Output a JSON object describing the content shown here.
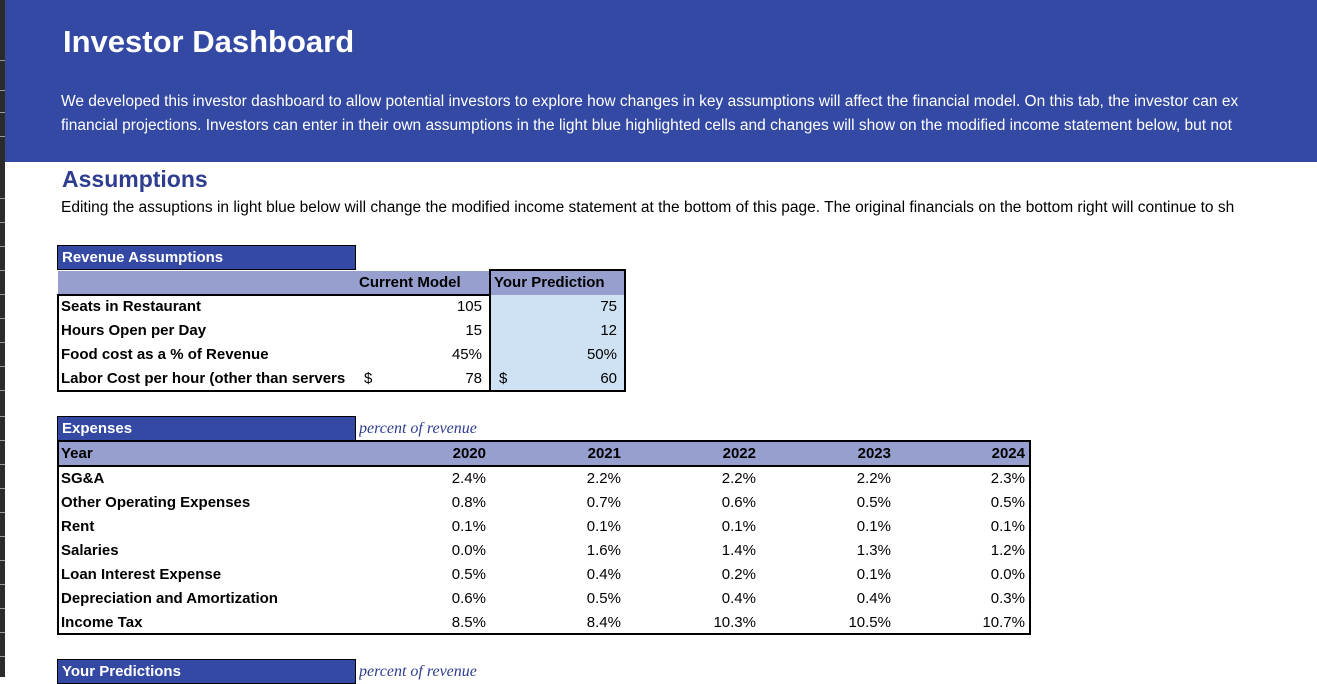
{
  "header": {
    "title": "Investor Dashboard",
    "desc_line1": "We developed this investor dashboard to allow potential investors to explore how changes in key assumptions will affect the financial model. On this tab, the investor can ex",
    "desc_line2": "financial projections.  Investors can enter in their own assumptions in the light blue highlighted cells and changes will show on the modified income statement below, but not"
  },
  "assumptions": {
    "title": "Assumptions",
    "subtitle": "Editing the assuptions in light blue below will change the modified income statement at the bottom of this page. The original financials on the bottom right will continue to sh"
  },
  "revenue": {
    "header": "Revenue Assumptions",
    "col_current": "Current Model",
    "col_prediction": "Your Prediction",
    "rows": [
      {
        "label": "Seats in Restaurant",
        "cur_sym": "",
        "current": "105",
        "pred_sym": "",
        "prediction": "75"
      },
      {
        "label": "Hours Open per Day",
        "cur_sym": "",
        "current": "15",
        "pred_sym": "",
        "prediction": "12"
      },
      {
        "label": "Food cost as a % of Revenue",
        "cur_sym": "",
        "current": "45%",
        "pred_sym": "",
        "prediction": "50%"
      },
      {
        "label": "Labor Cost per hour (other than servers",
        "cur_sym": "$",
        "current": "78",
        "pred_sym": "$",
        "prediction": "60"
      }
    ]
  },
  "expenses": {
    "header": "Expenses",
    "note": "percent of revenue",
    "year_label": "Year",
    "years": [
      "2020",
      "2021",
      "2022",
      "2023",
      "2024"
    ],
    "rows": [
      {
        "label": "SG&A",
        "values": [
          "2.4%",
          "2.2%",
          "2.2%",
          "2.2%",
          "2.3%"
        ]
      },
      {
        "label": "Other Operating Expenses",
        "values": [
          "0.8%",
          "0.7%",
          "0.6%",
          "0.5%",
          "0.5%"
        ]
      },
      {
        "label": "Rent",
        "values": [
          "0.1%",
          "0.1%",
          "0.1%",
          "0.1%",
          "0.1%"
        ]
      },
      {
        "label": "Salaries",
        "values": [
          "0.0%",
          "1.6%",
          "1.4%",
          "1.3%",
          "1.2%"
        ]
      },
      {
        "label": "Loan Interest Expense",
        "values": [
          "0.5%",
          "0.4%",
          "0.2%",
          "0.1%",
          "0.0%"
        ]
      },
      {
        "label": "Depreciation and Amortization",
        "values": [
          "0.6%",
          "0.5%",
          "0.4%",
          "0.4%",
          "0.3%"
        ]
      },
      {
        "label": "Income Tax",
        "values": [
          "8.5%",
          "8.4%",
          "10.3%",
          "10.5%",
          "10.7%"
        ]
      }
    ]
  },
  "predictions": {
    "header": "Your Predictions",
    "note": "percent of revenue"
  }
}
